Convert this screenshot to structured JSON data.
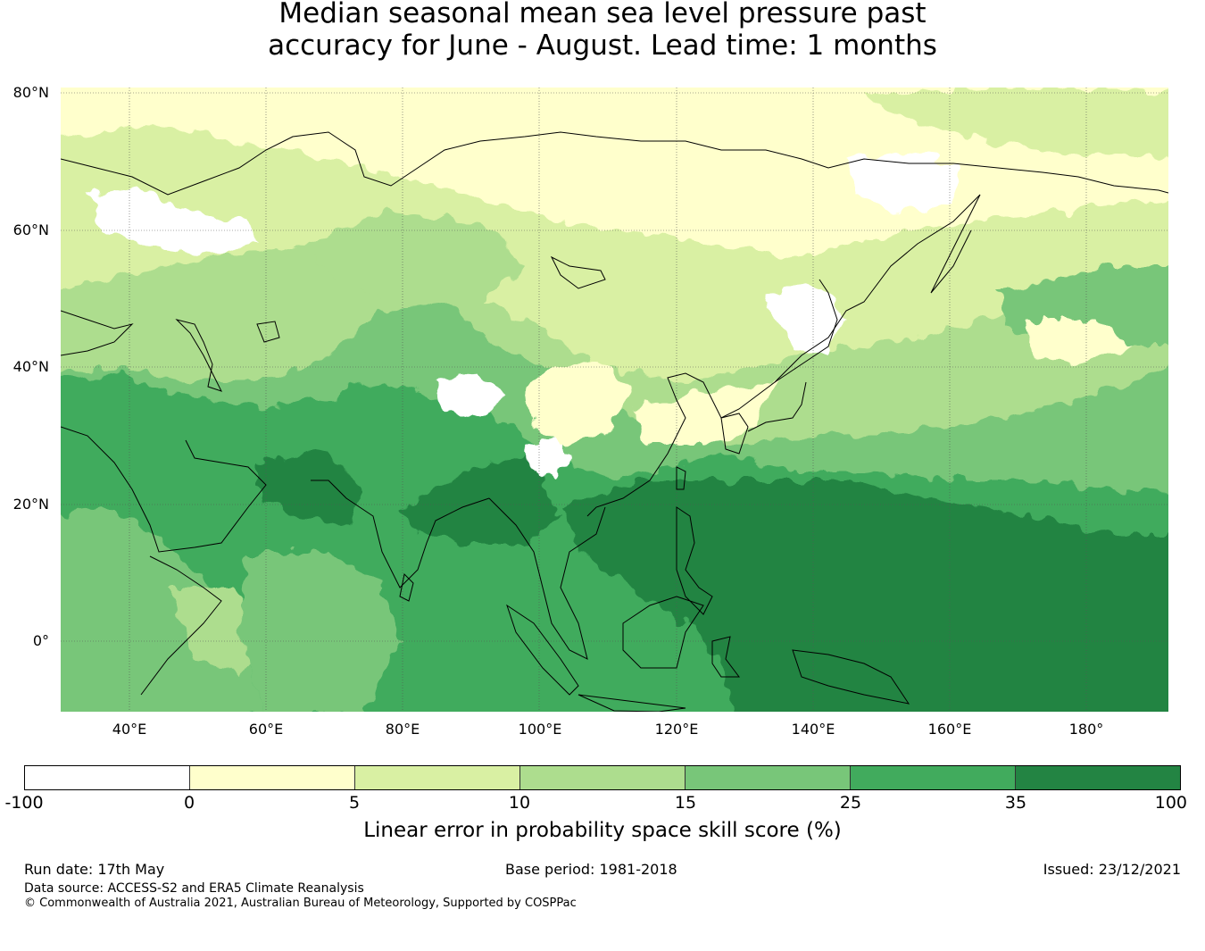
{
  "title": {
    "line1": "Median seasonal mean sea level pressure past",
    "line2": "accuracy for June - August. Lead time: 1 months"
  },
  "map": {
    "lon_range": [
      30,
      192
    ],
    "lat_range": [
      -10,
      81
    ],
    "lat_labels": [
      "80°N",
      "60°N",
      "40°N",
      "20°N",
      "0°"
    ],
    "lon_labels": [
      "40°E",
      "60°E",
      "80°E",
      "100°E",
      "120°E",
      "140°E",
      "160°E",
      "180°"
    ],
    "colors": {
      "c0": "#ffffff",
      "c1": "#ffffcc",
      "c2": "#d9f0a3",
      "c3": "#addd8e",
      "c4": "#78c679",
      "c5": "#41ab5d",
      "c6": "#238443",
      "coast": "#000000",
      "grid": "#555555"
    }
  },
  "colorbar": {
    "ticks": [
      "-100",
      "0",
      "5",
      "10",
      "15",
      "25",
      "35",
      "100"
    ],
    "colors": [
      "#ffffff",
      "#ffffcc",
      "#d9f0a3",
      "#addd8e",
      "#78c679",
      "#41ab5d",
      "#238443"
    ],
    "label": "Linear error in probability space skill score (%)"
  },
  "footer": {
    "run_date": "Run date: 17th May",
    "base_period": "Base period: 1981-2018",
    "issued": "Issued: 23/12/2021",
    "source": "Data source: ACCESS-S2 and ERA5 Climate Reanalysis",
    "copyright": "© Commonwealth of Australia 2021, Australian Bureau of Meteorology, Supported by COSPPac"
  }
}
